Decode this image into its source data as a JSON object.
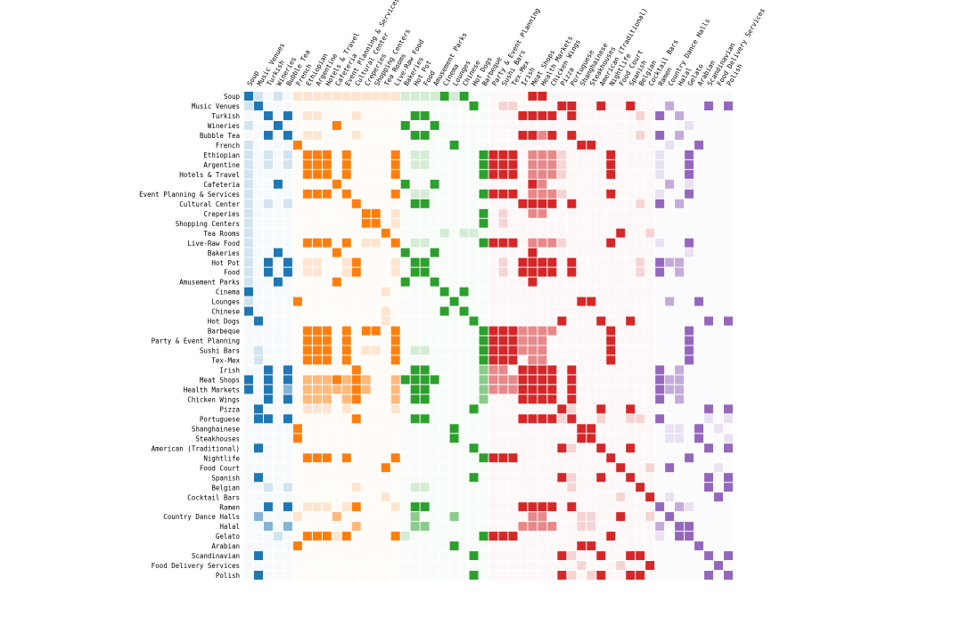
{
  "chart_data": {
    "type": "heatmap",
    "title": "",
    "xlabel": "",
    "ylabel": "",
    "labels": [
      "Soup",
      "Music Venues",
      "Turkish",
      "Wineries",
      "Bubble Tea",
      "French",
      "Ethiopian",
      "Argentine",
      "Hotels & Travel",
      "Cafeteria",
      "Event Planning & Services",
      "Cultural Center",
      "Creperies",
      "Shopping Centers",
      "Tea Rooms",
      "Live-Raw Food",
      "Bakeries",
      "Hot Pot",
      "Food",
      "Amusement Parks",
      "Cinema",
      "Lounges",
      "Chinese",
      "Hot Dogs",
      "Barbeque",
      "Party & Event Planning",
      "Sushi Bars",
      "Tex-Mex",
      "Irish",
      "Meat Shops",
      "Health Markets",
      "Chicken Wings",
      "Pizza",
      "Portuguese",
      "Shanghainese",
      "Steakhouses",
      "American (Traditional)",
      "Nightlife",
      "Food Court",
      "Spanish",
      "Belgian",
      "Cocktail Bars",
      "Ramen",
      "Country Dance Halls",
      "Halal",
      "Gelato",
      "Arabian",
      "Scandinavian",
      "Food Delivery Services",
      "Polish"
    ],
    "group_colors": {
      "blue": "#1f77b4",
      "orange": "#ff7f0e",
      "green": "#2ca02c",
      "red": "#d62728",
      "purple": "#9467bd"
    },
    "groups": [
      "blue",
      "blue",
      "blue",
      "blue",
      "blue",
      "orange",
      "orange",
      "orange",
      "orange",
      "orange",
      "orange",
      "orange",
      "orange",
      "orange",
      "orange",
      "orange",
      "green",
      "green",
      "green",
      "green",
      "green",
      "green",
      "green",
      "green",
      "green",
      "red",
      "red",
      "red",
      "red",
      "red",
      "red",
      "red",
      "red",
      "red",
      "red",
      "red",
      "red",
      "red",
      "red",
      "red",
      "red",
      "red",
      "purple",
      "purple",
      "purple",
      "purple",
      "purple",
      "purple",
      "purple",
      "purple"
    ],
    "strong_links": [
      [
        0,
        20
      ],
      [
        0,
        22
      ],
      [
        0,
        29
      ],
      [
        0,
        30
      ],
      [
        1,
        23
      ],
      [
        1,
        32
      ],
      [
        1,
        33
      ],
      [
        1,
        36
      ],
      [
        1,
        39
      ],
      [
        1,
        47
      ],
      [
        1,
        49
      ],
      [
        2,
        4
      ],
      [
        2,
        17
      ],
      [
        2,
        18
      ],
      [
        2,
        28
      ],
      [
        2,
        29
      ],
      [
        2,
        30
      ],
      [
        2,
        31
      ],
      [
        2,
        33
      ],
      [
        2,
        42
      ],
      [
        3,
        9
      ],
      [
        3,
        16
      ],
      [
        3,
        19
      ],
      [
        4,
        17
      ],
      [
        4,
        18
      ],
      [
        4,
        28
      ],
      [
        4,
        29
      ],
      [
        4,
        31
      ],
      [
        4,
        33
      ],
      [
        4,
        42
      ],
      [
        5,
        21
      ],
      [
        5,
        34
      ],
      [
        5,
        35
      ],
      [
        5,
        46
      ],
      [
        6,
        7
      ],
      [
        6,
        8
      ],
      [
        6,
        10
      ],
      [
        6,
        15
      ],
      [
        6,
        24
      ],
      [
        6,
        25
      ],
      [
        6,
        26
      ],
      [
        6,
        27
      ],
      [
        6,
        37
      ],
      [
        6,
        45
      ],
      [
        7,
        8
      ],
      [
        7,
        10
      ],
      [
        7,
        15
      ],
      [
        7,
        24
      ],
      [
        7,
        25
      ],
      [
        7,
        26
      ],
      [
        7,
        27
      ],
      [
        7,
        37
      ],
      [
        7,
        45
      ],
      [
        8,
        10
      ],
      [
        8,
        15
      ],
      [
        8,
        24
      ],
      [
        8,
        25
      ],
      [
        8,
        26
      ],
      [
        8,
        27
      ],
      [
        8,
        37
      ],
      [
        8,
        45
      ],
      [
        9,
        16
      ],
      [
        9,
        19
      ],
      [
        9,
        29
      ],
      [
        10,
        15
      ],
      [
        10,
        24
      ],
      [
        10,
        25
      ],
      [
        10,
        26
      ],
      [
        10,
        27
      ],
      [
        10,
        37
      ],
      [
        10,
        45
      ],
      [
        11,
        17
      ],
      [
        11,
        18
      ],
      [
        11,
        28
      ],
      [
        11,
        29
      ],
      [
        11,
        30
      ],
      [
        11,
        31
      ],
      [
        11,
        33
      ],
      [
        11,
        42
      ],
      [
        12,
        13
      ],
      [
        12,
        24
      ],
      [
        13,
        24
      ],
      [
        14,
        38
      ],
      [
        15,
        24
      ],
      [
        15,
        25
      ],
      [
        15,
        26
      ],
      [
        15,
        27
      ],
      [
        15,
        37
      ],
      [
        15,
        45
      ],
      [
        16,
        19
      ],
      [
        16,
        29
      ],
      [
        17,
        18
      ],
      [
        17,
        28
      ],
      [
        17,
        29
      ],
      [
        17,
        30
      ],
      [
        17,
        31
      ],
      [
        17,
        33
      ],
      [
        17,
        42
      ],
      [
        18,
        28
      ],
      [
        18,
        29
      ],
      [
        18,
        30
      ],
      [
        18,
        31
      ],
      [
        18,
        33
      ],
      [
        18,
        42
      ],
      [
        19,
        29
      ],
      [
        20,
        22
      ],
      [
        21,
        34
      ],
      [
        21,
        35
      ],
      [
        21,
        46
      ],
      [
        23,
        32
      ],
      [
        23,
        36
      ],
      [
        23,
        39
      ],
      [
        23,
        47
      ],
      [
        23,
        49
      ],
      [
        24,
        25
      ],
      [
        24,
        26
      ],
      [
        24,
        27
      ],
      [
        24,
        37
      ],
      [
        24,
        45
      ],
      [
        25,
        26
      ],
      [
        25,
        27
      ],
      [
        25,
        37
      ],
      [
        25,
        45
      ],
      [
        26,
        27
      ],
      [
        26,
        37
      ],
      [
        26,
        45
      ],
      [
        27,
        37
      ],
      [
        27,
        45
      ],
      [
        28,
        29
      ],
      [
        28,
        30
      ],
      [
        28,
        31
      ],
      [
        28,
        33
      ],
      [
        28,
        42
      ],
      [
        29,
        30
      ],
      [
        29,
        31
      ],
      [
        29,
        33
      ],
      [
        29,
        42
      ],
      [
        30,
        31
      ],
      [
        30,
        33
      ],
      [
        30,
        42
      ],
      [
        31,
        33
      ],
      [
        31,
        42
      ],
      [
        32,
        36
      ],
      [
        32,
        39
      ],
      [
        32,
        47
      ],
      [
        32,
        49
      ],
      [
        33,
        42
      ],
      [
        34,
        35
      ],
      [
        34,
        46
      ],
      [
        35,
        46
      ],
      [
        36,
        39
      ],
      [
        36,
        47
      ],
      [
        36,
        49
      ],
      [
        37,
        45
      ],
      [
        38,
        43
      ],
      [
        39,
        47
      ],
      [
        39,
        49
      ],
      [
        40,
        47
      ],
      [
        40,
        49
      ],
      [
        41,
        48
      ],
      [
        44,
        45
      ],
      [
        47,
        49
      ]
    ],
    "medium_links": [
      [
        29,
        30
      ],
      [
        29,
        31
      ],
      [
        30,
        31
      ],
      [
        29,
        43
      ],
      [
        30,
        44
      ],
      [
        31,
        44
      ],
      [
        30,
        43
      ],
      [
        44,
        29
      ],
      [
        42,
        44
      ],
      [
        43,
        29
      ],
      [
        28,
        44
      ],
      [
        17,
        44
      ],
      [
        18,
        44
      ],
      [
        2,
        44
      ],
      [
        4,
        44
      ],
      [
        11,
        44
      ],
      [
        29,
        2
      ],
      [
        30,
        2
      ],
      [
        29,
        4
      ],
      [
        30,
        4
      ],
      [
        29,
        17
      ],
      [
        30,
        17
      ],
      [
        29,
        18
      ],
      [
        30,
        18
      ],
      [
        31,
        17
      ],
      [
        31,
        18
      ],
      [
        31,
        2
      ],
      [
        31,
        4
      ],
      [
        29,
        24
      ],
      [
        30,
        24
      ],
      [
        31,
        24
      ],
      [
        29,
        15
      ],
      [
        30,
        15
      ],
      [
        31,
        15
      ],
      [
        29,
        6
      ],
      [
        30,
        6
      ],
      [
        31,
        6
      ],
      [
        29,
        7
      ],
      [
        30,
        7
      ],
      [
        31,
        7
      ],
      [
        29,
        8
      ],
      [
        30,
        8
      ],
      [
        31,
        8
      ],
      [
        29,
        10
      ],
      [
        30,
        10
      ],
      [
        31,
        10
      ],
      [
        29,
        12
      ],
      [
        30,
        12
      ],
      [
        29,
        9
      ],
      [
        30,
        9
      ],
      [
        43,
        1
      ],
      [
        43,
        9
      ],
      [
        43,
        17
      ],
      [
        43,
        21
      ],
      [
        24,
        28
      ],
      [
        25,
        28
      ],
      [
        26,
        28
      ],
      [
        24,
        29
      ],
      [
        25,
        29
      ],
      [
        26,
        29
      ],
      [
        27,
        29
      ],
      [
        24,
        30
      ],
      [
        25,
        30
      ],
      [
        26,
        30
      ],
      [
        27,
        30
      ],
      [
        6,
        29
      ],
      [
        7,
        29
      ],
      [
        8,
        29
      ],
      [
        10,
        29
      ],
      [
        15,
        29
      ],
      [
        6,
        30
      ],
      [
        7,
        30
      ],
      [
        8,
        30
      ],
      [
        10,
        30
      ],
      [
        15,
        30
      ]
    ],
    "weak_links": [
      [
        0,
        1
      ],
      [
        0,
        3
      ],
      [
        0,
        5
      ],
      [
        0,
        6
      ],
      [
        0,
        7
      ],
      [
        0,
        8
      ],
      [
        0,
        9
      ],
      [
        0,
        10
      ],
      [
        0,
        11
      ],
      [
        0,
        12
      ],
      [
        0,
        13
      ],
      [
        0,
        14
      ],
      [
        0,
        15
      ],
      [
        0,
        16
      ],
      [
        0,
        17
      ],
      [
        0,
        18
      ],
      [
        0,
        19
      ],
      [
        0,
        21
      ],
      [
        6,
        2
      ],
      [
        6,
        4
      ],
      [
        2,
        11
      ],
      [
        4,
        11
      ],
      [
        2,
        40
      ],
      [
        4,
        40
      ],
      [
        11,
        40
      ],
      [
        17,
        40
      ],
      [
        18,
        40
      ],
      [
        3,
        45
      ],
      [
        9,
        45
      ],
      [
        16,
        45
      ],
      [
        5,
        43
      ],
      [
        21,
        43
      ],
      [
        34,
        43
      ],
      [
        35,
        43
      ],
      [
        34,
        44
      ],
      [
        35,
        44
      ],
      [
        35,
        49
      ],
      [
        34,
        48
      ],
      [
        24,
        12
      ],
      [
        24,
        13
      ],
      [
        12,
        15
      ],
      [
        13,
        15
      ],
      [
        12,
        26
      ],
      [
        13,
        26
      ],
      [
        17,
        26
      ],
      [
        18,
        26
      ],
      [
        1,
        26
      ],
      [
        1,
        27
      ],
      [
        1,
        36
      ],
      [
        32,
        33
      ],
      [
        33,
        36
      ],
      [
        33,
        39
      ],
      [
        36,
        33
      ],
      [
        40,
        33
      ],
      [
        47,
        33
      ],
      [
        49,
        33
      ],
      [
        6,
        32
      ],
      [
        7,
        32
      ],
      [
        8,
        32
      ],
      [
        10,
        32
      ],
      [
        15,
        32
      ],
      [
        6,
        42
      ],
      [
        7,
        42
      ],
      [
        8,
        42
      ],
      [
        10,
        42
      ],
      [
        15,
        42
      ],
      [
        45,
        42
      ],
      [
        45,
        44
      ],
      [
        2,
        6
      ],
      [
        4,
        6
      ],
      [
        2,
        7
      ],
      [
        4,
        7
      ],
      [
        17,
        6
      ],
      [
        18,
        6
      ],
      [
        17,
        7
      ],
      [
        18,
        7
      ],
      [
        17,
        15
      ],
      [
        18,
        15
      ],
      [
        17,
        10
      ],
      [
        18,
        10
      ],
      [
        14,
        20
      ],
      [
        14,
        22
      ],
      [
        14,
        23
      ],
      [
        14,
        41
      ],
      [
        38,
        41
      ],
      [
        38,
        48
      ],
      [
        41,
        43
      ]
    ]
  }
}
